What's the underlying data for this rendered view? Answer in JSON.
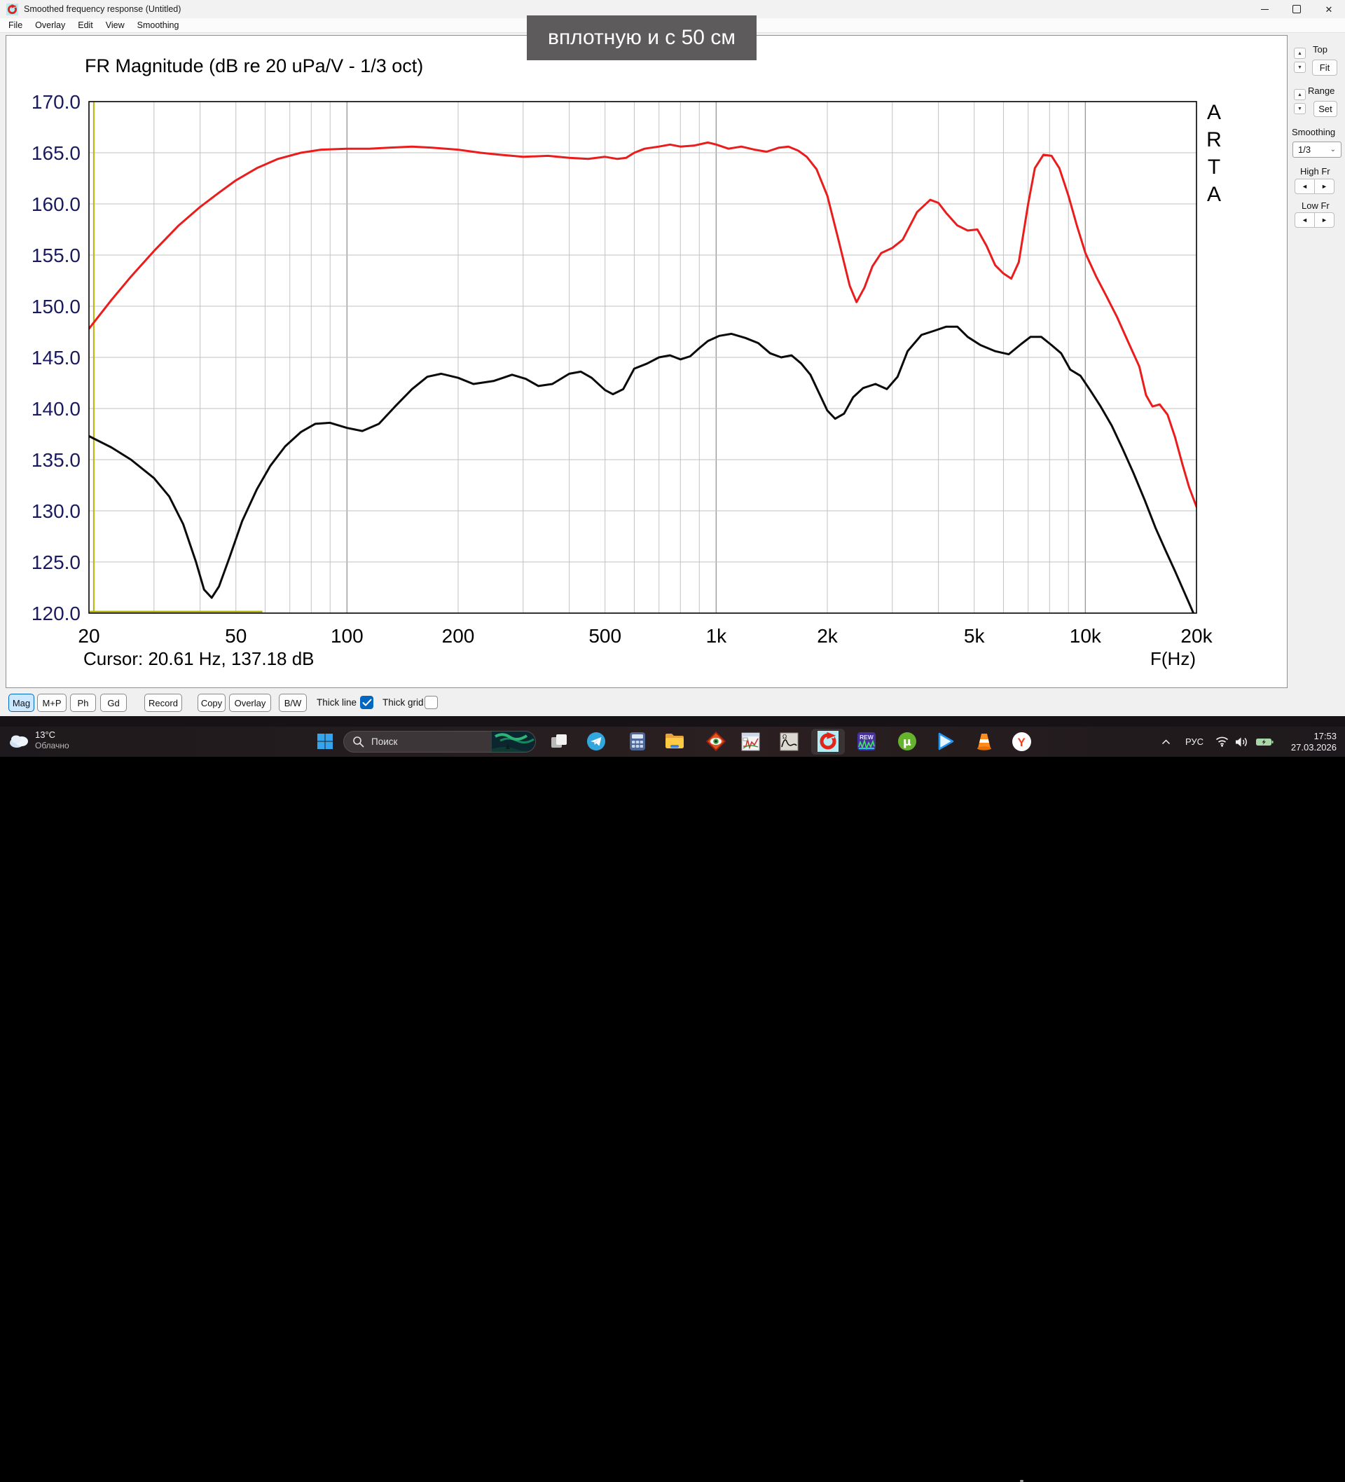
{
  "window": {
    "title": "Smoothed frequency response (Untitled)",
    "menu": [
      "File",
      "Overlay",
      "Edit",
      "View",
      "Smoothing"
    ]
  },
  "overlay_note": {
    "text": "вплотную и с 50 см"
  },
  "chart": {
    "title": "FR Magnitude (dB re 20 uPa/V - 1/3 oct)",
    "cursor_text": "Cursor: 20.61 Hz, 137.18 dB",
    "x_unit_label": "F(Hz)",
    "watermark": "ARTA"
  },
  "chart_data": {
    "type": "line",
    "xscale": "log",
    "xlim": [
      20,
      20000
    ],
    "ylim": [
      120,
      170
    ],
    "y_tick_step": 5,
    "x_ticks": [
      {
        "value": 20,
        "label": "20"
      },
      {
        "value": 50,
        "label": "50"
      },
      {
        "value": 100,
        "label": "100"
      },
      {
        "value": 200,
        "label": "200"
      },
      {
        "value": 500,
        "label": "500"
      },
      {
        "value": 1000,
        "label": "1k"
      },
      {
        "value": 2000,
        "label": "2k"
      },
      {
        "value": 5000,
        "label": "5k"
      },
      {
        "value": 10000,
        "label": "10k"
      },
      {
        "value": 20000,
        "label": "20k"
      }
    ],
    "cursor": {
      "freq_hz": 20.61,
      "level_db": 137.18,
      "color": "#b6b400"
    },
    "marker_line": {
      "level_db": 120.15,
      "from_hz": 20,
      "to_hz": 59,
      "color": "#b6b400"
    },
    "series": [
      {
        "name": "red-curve",
        "color": "#ea1c1c",
        "points": [
          [
            20,
            147.8
          ],
          [
            23,
            150.6
          ],
          [
            26,
            152.9
          ],
          [
            30,
            155.4
          ],
          [
            35,
            157.9
          ],
          [
            40,
            159.7
          ],
          [
            45,
            161.1
          ],
          [
            50,
            162.3
          ],
          [
            57,
            163.5
          ],
          [
            65,
            164.4
          ],
          [
            75,
            165.0
          ],
          [
            85,
            165.3
          ],
          [
            100,
            165.4
          ],
          [
            115,
            165.4
          ],
          [
            130,
            165.5
          ],
          [
            150,
            165.6
          ],
          [
            170,
            165.5
          ],
          [
            200,
            165.3
          ],
          [
            230,
            165.0
          ],
          [
            260,
            164.8
          ],
          [
            300,
            164.6
          ],
          [
            350,
            164.7
          ],
          [
            400,
            164.5
          ],
          [
            450,
            164.4
          ],
          [
            500,
            164.6
          ],
          [
            540,
            164.4
          ],
          [
            570,
            164.5
          ],
          [
            600,
            165.0
          ],
          [
            640,
            165.4
          ],
          [
            700,
            165.6
          ],
          [
            750,
            165.8
          ],
          [
            800,
            165.6
          ],
          [
            870,
            165.7
          ],
          [
            950,
            166.0
          ],
          [
            1000,
            165.8
          ],
          [
            1080,
            165.4
          ],
          [
            1170,
            165.6
          ],
          [
            1270,
            165.3
          ],
          [
            1370,
            165.1
          ],
          [
            1480,
            165.5
          ],
          [
            1570,
            165.6
          ],
          [
            1670,
            165.2
          ],
          [
            1760,
            164.6
          ],
          [
            1870,
            163.4
          ],
          [
            2000,
            160.8
          ],
          [
            2150,
            156.3
          ],
          [
            2300,
            152.0
          ],
          [
            2400,
            150.4
          ],
          [
            2520,
            151.8
          ],
          [
            2650,
            153.9
          ],
          [
            2800,
            155.2
          ],
          [
            3000,
            155.7
          ],
          [
            3200,
            156.5
          ],
          [
            3500,
            159.2
          ],
          [
            3800,
            160.4
          ],
          [
            4000,
            160.1
          ],
          [
            4200,
            159.1
          ],
          [
            4500,
            157.9
          ],
          [
            4800,
            157.4
          ],
          [
            5100,
            157.5
          ],
          [
            5400,
            155.9
          ],
          [
            5700,
            154.0
          ],
          [
            6000,
            153.2
          ],
          [
            6300,
            152.7
          ],
          [
            6600,
            154.3
          ],
          [
            7000,
            160.0
          ],
          [
            7300,
            163.5
          ],
          [
            7700,
            164.8
          ],
          [
            8100,
            164.7
          ],
          [
            8500,
            163.5
          ],
          [
            9000,
            160.8
          ],
          [
            9500,
            157.8
          ],
          [
            10000,
            155.2
          ],
          [
            10700,
            152.9
          ],
          [
            11400,
            151.0
          ],
          [
            12200,
            148.9
          ],
          [
            13100,
            146.4
          ],
          [
            14000,
            144.1
          ],
          [
            14600,
            141.3
          ],
          [
            15200,
            140.2
          ],
          [
            15900,
            140.4
          ],
          [
            16700,
            139.4
          ],
          [
            17500,
            137.2
          ],
          [
            18300,
            134.6
          ],
          [
            19100,
            132.3
          ],
          [
            20000,
            130.4
          ]
        ]
      },
      {
        "name": "black-curve",
        "color": "#0a0a0a",
        "points": [
          [
            20,
            137.3
          ],
          [
            23,
            136.2
          ],
          [
            26,
            135.0
          ],
          [
            30,
            133.2
          ],
          [
            33,
            131.4
          ],
          [
            36,
            128.7
          ],
          [
            39,
            125.0
          ],
          [
            41,
            122.3
          ],
          [
            43,
            121.5
          ],
          [
            45,
            122.6
          ],
          [
            48,
            125.4
          ],
          [
            52,
            129.0
          ],
          [
            57,
            132.1
          ],
          [
            62,
            134.4
          ],
          [
            68,
            136.3
          ],
          [
            75,
            137.7
          ],
          [
            82,
            138.5
          ],
          [
            90,
            138.6
          ],
          [
            100,
            138.1
          ],
          [
            110,
            137.8
          ],
          [
            122,
            138.5
          ],
          [
            135,
            140.2
          ],
          [
            150,
            141.9
          ],
          [
            165,
            143.1
          ],
          [
            180,
            143.4
          ],
          [
            200,
            143.0
          ],
          [
            220,
            142.4
          ],
          [
            250,
            142.7
          ],
          [
            280,
            143.3
          ],
          [
            305,
            142.9
          ],
          [
            330,
            142.2
          ],
          [
            360,
            142.4
          ],
          [
            400,
            143.4
          ],
          [
            430,
            143.6
          ],
          [
            460,
            143.0
          ],
          [
            500,
            141.8
          ],
          [
            525,
            141.4
          ],
          [
            560,
            141.9
          ],
          [
            600,
            143.9
          ],
          [
            650,
            144.4
          ],
          [
            700,
            145.0
          ],
          [
            750,
            145.2
          ],
          [
            800,
            144.8
          ],
          [
            850,
            145.1
          ],
          [
            900,
            145.9
          ],
          [
            950,
            146.6
          ],
          [
            1020,
            147.1
          ],
          [
            1100,
            147.3
          ],
          [
            1200,
            146.9
          ],
          [
            1300,
            146.4
          ],
          [
            1400,
            145.4
          ],
          [
            1500,
            145.0
          ],
          [
            1600,
            145.2
          ],
          [
            1700,
            144.4
          ],
          [
            1800,
            143.3
          ],
          [
            1900,
            141.5
          ],
          [
            2000,
            139.8
          ],
          [
            2100,
            139.0
          ],
          [
            2220,
            139.5
          ],
          [
            2350,
            141.1
          ],
          [
            2500,
            142.0
          ],
          [
            2700,
            142.4
          ],
          [
            2900,
            141.9
          ],
          [
            3100,
            143.1
          ],
          [
            3300,
            145.6
          ],
          [
            3600,
            147.2
          ],
          [
            3900,
            147.6
          ],
          [
            4200,
            148.0
          ],
          [
            4500,
            148.0
          ],
          [
            4800,
            147.0
          ],
          [
            5200,
            146.2
          ],
          [
            5700,
            145.6
          ],
          [
            6200,
            145.3
          ],
          [
            6700,
            146.3
          ],
          [
            7100,
            147.0
          ],
          [
            7600,
            147.0
          ],
          [
            8100,
            146.2
          ],
          [
            8600,
            145.4
          ],
          [
            9100,
            143.8
          ],
          [
            9700,
            143.2
          ],
          [
            10300,
            141.8
          ],
          [
            11000,
            140.2
          ],
          [
            11800,
            138.3
          ],
          [
            12600,
            136.1
          ],
          [
            13500,
            133.7
          ],
          [
            14500,
            131.0
          ],
          [
            15500,
            128.3
          ],
          [
            16500,
            126.1
          ],
          [
            17500,
            124.1
          ],
          [
            18500,
            122.1
          ],
          [
            19300,
            120.6
          ],
          [
            20000,
            119.3
          ]
        ]
      }
    ],
    "colors": {
      "grid_minor": "#c2c2c2",
      "grid_major": "#9a9a9a",
      "frame": "#000000",
      "y_tick_text": "#1a1a5e",
      "x_tick_text": "#000000"
    }
  },
  "side_panel": {
    "top_label": "Top",
    "fit_button": "Fit",
    "range_label": "Range",
    "set_button": "Set",
    "smoothing_label": "Smoothing",
    "smoothing_value": "1/3",
    "high_fr_label": "High Fr",
    "low_fr_label": "Low Fr"
  },
  "toolbar": {
    "buttons": [
      "Mag",
      "M+P",
      "Ph",
      "Gd",
      "Record",
      "Copy",
      "Overlay",
      "B/W"
    ],
    "active_button": "Mag",
    "checkboxes": [
      {
        "label": "Thick line",
        "checked": true
      },
      {
        "label": "Thick grid",
        "checked": false
      }
    ]
  },
  "taskbar": {
    "weather": {
      "temp": "13°C",
      "condition": "Облачно"
    },
    "search_placeholder": "Поиск",
    "icons": [
      "task-view",
      "telegram",
      "calculator",
      "file-explorer",
      "eye-app",
      "fft-app",
      "impedance-app",
      "arta",
      "rew",
      "utorrent",
      "media-player",
      "vlc",
      "yandex-browser"
    ],
    "tray": {
      "language": "РУС",
      "time": "17:53",
      "date": "27.03.2026"
    }
  }
}
